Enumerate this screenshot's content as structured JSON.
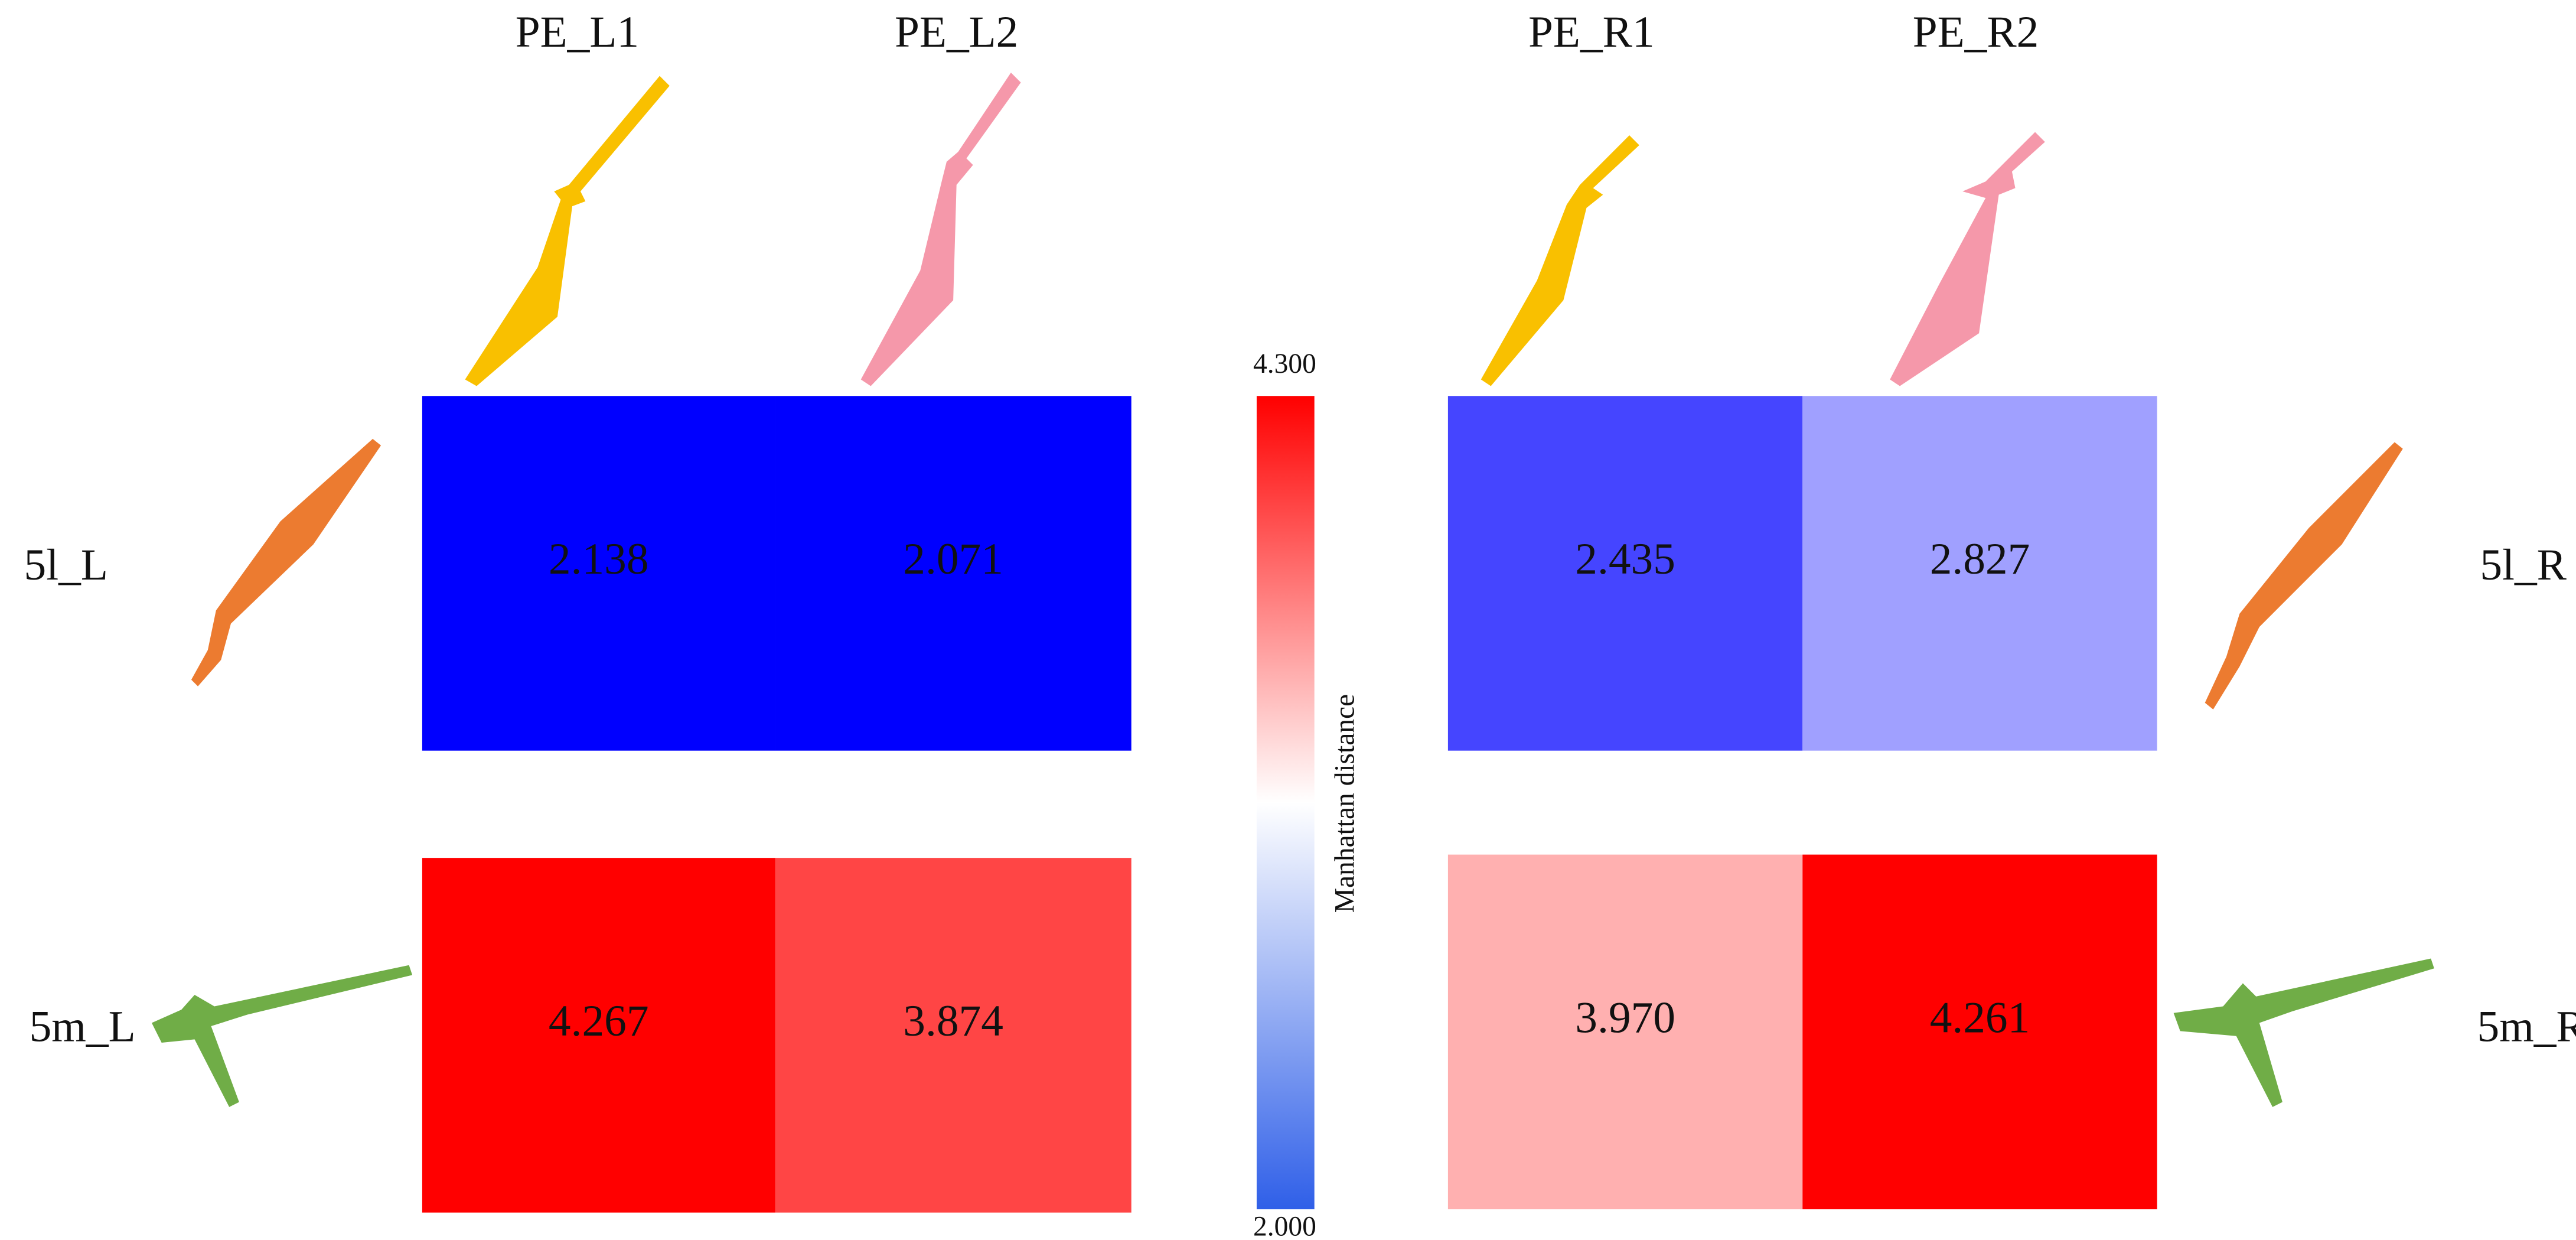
{
  "chart_data": {
    "type": "heatmap",
    "colorbar": {
      "label": "Manhattan distance",
      "lim": [
        2,
        4.3
      ],
      "ticks": [
        {
          "value": 2,
          "label": "2.000"
        },
        {
          "value": 4.3,
          "label": "4.300"
        }
      ],
      "colors": [
        "#2f5fe8",
        "#ffffff",
        "#ff0000"
      ]
    },
    "panels": [
      {
        "columns": [
          "PE_L1",
          "PE_L2"
        ],
        "rows": [
          "5l_L",
          "5m_L"
        ],
        "values": [
          [
            2.138,
            2.071
          ],
          [
            4.267,
            3.874
          ]
        ],
        "value_labels": [
          [
            "2.138",
            "2.071"
          ],
          [
            "4.267",
            "3.874"
          ]
        ],
        "colors": [
          [
            "#0000ff",
            "#0000ff"
          ],
          [
            "#ff0000",
            "#ff4545"
          ]
        ]
      },
      {
        "columns": [
          "PE_R1",
          "PE_R2"
        ],
        "rows": [
          "5l_R",
          "5m_R"
        ],
        "values": [
          [
            2.435,
            2.827
          ],
          [
            3.97,
            4.261
          ]
        ],
        "value_labels": [
          [
            "2.435",
            "2.827"
          ],
          [
            "3.970",
            "4.261"
          ]
        ],
        "colors": [
          [
            "#4545ff",
            "#a0a0ff"
          ],
          [
            "#ffb0b0",
            "#ff0000"
          ]
        ]
      }
    ]
  }
}
